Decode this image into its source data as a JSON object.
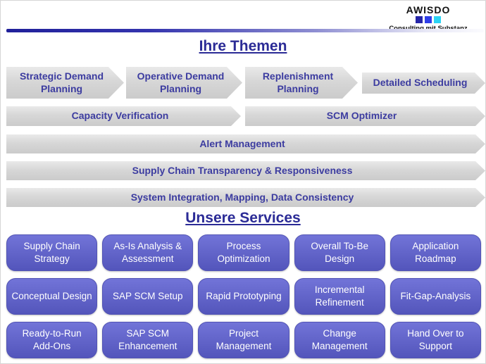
{
  "logo": {
    "name": "AWISDO",
    "tagline": "Consulting mit Substanz",
    "square_colors": [
      "#2626A8",
      "#2F3FE8",
      "#2CD4F4"
    ]
  },
  "themen": {
    "title": "Ihre Themen",
    "row1": [
      "Strategic Demand Planning",
      "Operative Demand Planning",
      "Replenishment Planning",
      "Detailed Scheduling"
    ],
    "row2": [
      "Capacity Verification",
      "SCM Optimizer"
    ],
    "row3": "Alert Management",
    "row4": "Supply Chain Transparency & Responsiveness",
    "row5": "System Integration, Mapping, Data Consistency"
  },
  "services": {
    "title": "Unsere Services",
    "items": [
      "Supply Chain Strategy",
      "As-Is Analysis & Assessment",
      "Process Optimization",
      "Overall To-Be Design",
      "Application Roadmap",
      "Conceptual Design",
      "SAP SCM Setup",
      "Rapid Prototyping",
      "Incremental Refinement",
      "Fit-Gap-Analysis",
      "Ready-to-Run Add-Ons",
      "SAP SCM Enhancement",
      "Project Management",
      "Change Management",
      "Hand Over to Support"
    ]
  },
  "colors": {
    "accent": "#2B2B96",
    "arrow_text": "#3C3CA0",
    "arrow_fill": "#D9D9D9",
    "service_fill": "#6366CB",
    "header_rule": "#20209A"
  }
}
